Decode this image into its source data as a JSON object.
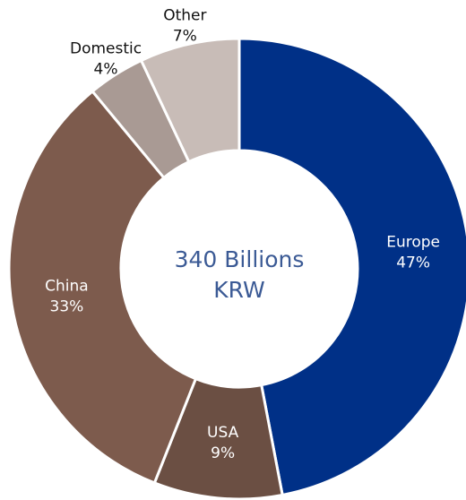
{
  "chart_data": {
    "type": "donut",
    "center_label": [
      "340 Billions",
      "KRW"
    ],
    "categories": [
      "Europe",
      "USA",
      "China",
      "Domestic",
      "Other"
    ],
    "values": [
      47,
      9,
      33,
      4,
      7
    ],
    "value_labels": [
      "47%",
      "9%",
      "33%",
      "4%",
      "7%"
    ],
    "colors": [
      "#003087",
      "#6b4f43",
      "#7d5b4d",
      "#a99a94",
      "#c8bcb7"
    ]
  }
}
